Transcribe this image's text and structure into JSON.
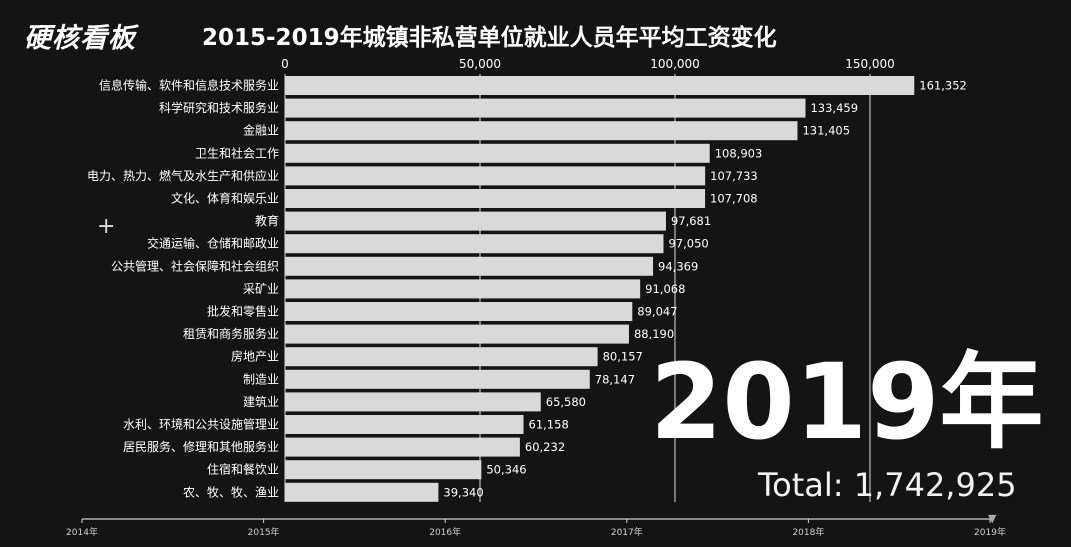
{
  "logo": "硬核看板",
  "colors": {
    "background": "#141414",
    "bar": "#d9d9d9",
    "grid": "#ffffff"
  },
  "chart_data": {
    "type": "bar",
    "orientation": "horizontal",
    "title": "2015-2019年城镇非私营单位就业人员年平均工资变化",
    "x_ticks": [
      0,
      50000,
      100000,
      150000
    ],
    "x_tick_labels": [
      "0",
      "50,000",
      "100,000",
      "150,000"
    ],
    "xlim": [
      0,
      162000
    ],
    "grid": true,
    "categories": [
      "信息传输、软件和信息技术服务业",
      "科学研究和技术服务业",
      "金融业",
      "卫生和社会工作",
      "电力、热力、燃气及水生产和供应业",
      "文化、体育和娱乐业",
      "教育",
      "交通运输、仓储和邮政业",
      "公共管理、社会保障和社会组织",
      "采矿业",
      "批发和零售业",
      "租赁和商务服务业",
      "房地产业",
      "制造业",
      "建筑业",
      "水利、环境和公共设施管理业",
      "居民服务、修理和其他服务业",
      "住宿和餐饮业",
      "农、牧、牧、渔业"
    ],
    "values": [
      161352,
      133459,
      131405,
      108903,
      107733,
      107708,
      97681,
      97050,
      94369,
      91068,
      89047,
      88190,
      80157,
      78147,
      65580,
      61158,
      60232,
      50346,
      39340
    ],
    "value_labels": [
      "161,352",
      "133,459",
      "131,405",
      "108,903",
      "107,733",
      "107,708",
      "97,681",
      "97,050",
      "94,369",
      "91,068",
      "89,047",
      "88,190",
      "80,157",
      "78,147",
      "65,580",
      "61,158",
      "60,232",
      "50,346",
      "39,340"
    ],
    "year": "2019年",
    "total": "Total: 1,742,925",
    "timeline": {
      "labels": [
        "2014年",
        "2015年",
        "2016年",
        "2017年",
        "2018年",
        "2019年"
      ],
      "current": "2019年"
    }
  }
}
